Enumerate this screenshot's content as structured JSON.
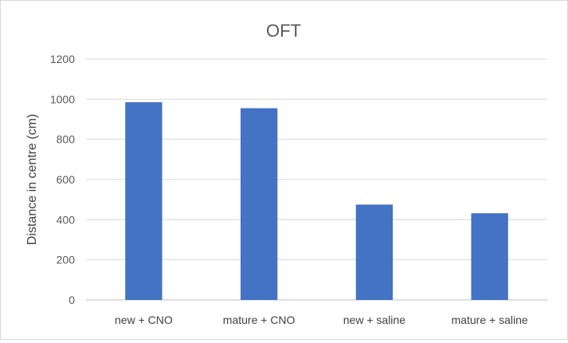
{
  "chart_data": {
    "type": "bar",
    "title": "OFT",
    "xlabel": "",
    "ylabel": "Distance in centre (cm)",
    "categories": [
      "new + CNO",
      "mature + CNO",
      "new + saline",
      "mature + saline"
    ],
    "values": [
      985,
      955,
      475,
      432
    ],
    "ylim": [
      0,
      1200
    ],
    "yticks": [
      0,
      200,
      400,
      600,
      800,
      1000,
      1200
    ],
    "grid": true,
    "legend": "none",
    "bar_color": "#4472C4"
  }
}
